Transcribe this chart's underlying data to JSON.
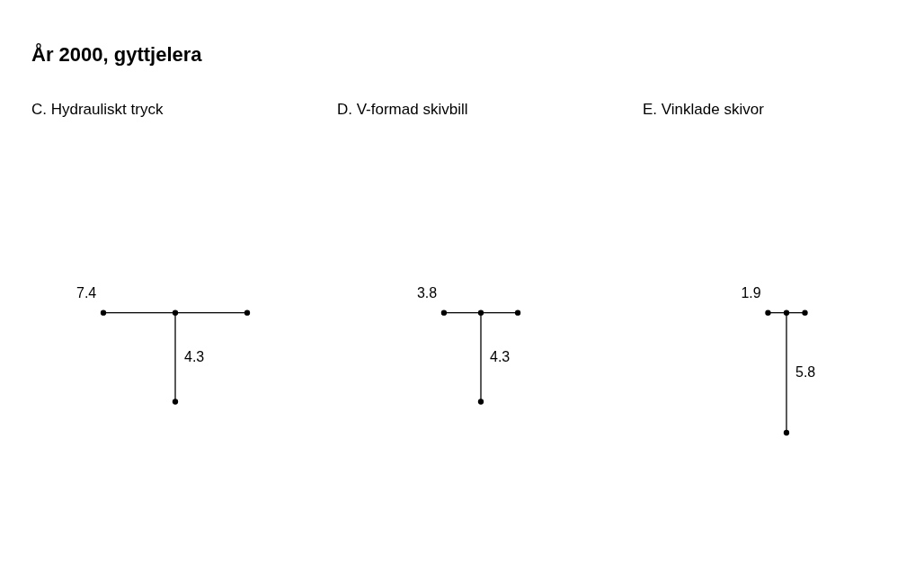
{
  "chart_data": [
    {
      "type": "other",
      "title": "År 2000, gyttjelera",
      "subtitle": "C. Hydrauliskt tryck",
      "values": [
        7.4,
        4.3
      ],
      "data_labels": true
    },
    {
      "type": "other",
      "subtitle": "D. V-formad skivbill",
      "values": [
        3.8,
        4.3
      ],
      "data_labels": true
    },
    {
      "type": "other",
      "subtitle": "E. Vinklade skivor",
      "values": [
        1.9,
        5.8
      ],
      "data_labels": true
    }
  ]
}
